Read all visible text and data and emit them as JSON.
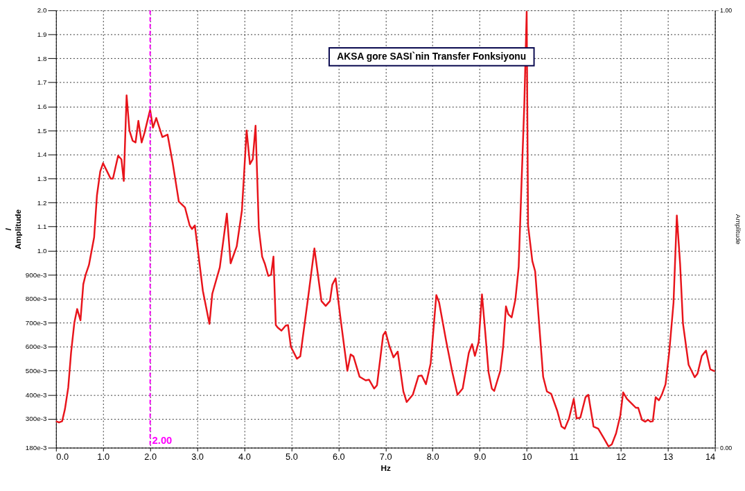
{
  "chart_data": {
    "type": "line",
    "title": "AKSA gore SASI`nin Transfer Fonksiyonu",
    "xlabel": "Hz",
    "ylabel": "/\nAmplitude",
    "y2label": "Amplitude",
    "x": [
      0,
      0.065,
      0.13,
      0.19,
      0.26,
      0.32,
      0.39,
      0.45,
      0.52,
      0.58,
      0.63,
      0.7,
      0.81,
      0.87,
      0.94,
      1.0,
      1.06,
      1.16,
      1.21,
      1.32,
      1.39,
      1.44,
      1.5,
      1.56,
      1.63,
      1.69,
      1.75,
      1.82,
      1.88,
      2.0,
      2.06,
      2.13,
      2.26,
      2.37,
      2.48,
      2.61,
      2.74,
      2.84,
      2.89,
      2.95,
      3.12,
      3.26,
      3.32,
      3.48,
      3.63,
      3.71,
      3.84,
      3.95,
      4.05,
      4.12,
      4.18,
      4.24,
      4.31,
      4.38,
      4.44,
      4.51,
      4.57,
      4.62,
      4.67,
      4.71,
      4.79,
      4.88,
      4.93,
      4.99,
      5.12,
      5.19,
      5.36,
      5.49,
      5.64,
      5.73,
      5.82,
      5.87,
      5.94,
      6.05,
      6.19,
      6.26,
      6.32,
      6.45,
      6.58,
      6.65,
      6.76,
      6.82,
      6.95,
      7.0,
      7.08,
      7.17,
      7.26,
      7.38,
      7.45,
      7.58,
      7.7,
      7.77,
      7.86,
      7.96,
      8.08,
      8.14,
      8.29,
      8.42,
      8.53,
      8.64,
      8.77,
      8.84,
      8.9,
      8.98,
      9.05,
      9.12,
      9.19,
      9.26,
      9.31,
      9.44,
      9.5,
      9.56,
      9.61,
      9.68,
      9.76,
      9.83,
      9.89,
      9.95,
      10.0,
      10.03,
      10.12,
      10.18,
      10.35,
      10.43,
      10.52,
      10.65,
      10.74,
      10.81,
      10.9,
      11.0,
      11.06,
      11.14,
      11.25,
      11.31,
      11.42,
      11.52,
      11.65,
      11.74,
      11.81,
      11.9,
      11.99,
      12.05,
      12.13,
      12.23,
      12.32,
      12.37,
      12.45,
      12.52,
      12.58,
      12.63,
      12.68,
      12.74,
      12.81,
      12.87,
      12.95,
      13.03,
      13.12,
      13.19,
      13.26,
      13.32,
      13.44,
      13.57,
      13.63,
      13.72,
      13.81,
      13.9,
      14.0
    ],
    "series": [
      {
        "color": "#e8141b",
        "values": [
          0.29,
          0.285,
          0.29,
          0.34,
          0.43,
          0.575,
          0.7,
          0.757,
          0.71,
          0.86,
          0.9,
          0.94,
          1.055,
          1.23,
          1.33,
          1.364,
          1.34,
          1.3,
          1.3,
          1.395,
          1.38,
          1.29,
          1.646,
          1.5,
          1.457,
          1.45,
          1.54,
          1.45,
          1.49,
          1.586,
          1.512,
          1.552,
          1.473,
          1.483,
          1.364,
          1.204,
          1.18,
          1.105,
          1.09,
          1.105,
          0.833,
          0.695,
          0.82,
          0.93,
          1.154,
          0.947,
          1.018,
          1.167,
          1.5,
          1.36,
          1.38,
          1.52,
          1.09,
          0.975,
          0.944,
          0.895,
          0.9,
          0.975,
          0.69,
          0.68,
          0.667,
          0.688,
          0.69,
          0.6,
          0.55,
          0.56,
          0.81,
          1.009,
          0.79,
          0.77,
          0.79,
          0.858,
          0.885,
          0.71,
          0.5,
          0.568,
          0.56,
          0.475,
          0.46,
          0.463,
          0.426,
          0.44,
          0.648,
          0.663,
          0.605,
          0.556,
          0.58,
          0.414,
          0.37,
          0.4,
          0.478,
          0.48,
          0.444,
          0.531,
          0.815,
          0.784,
          0.623,
          0.494,
          0.4,
          0.426,
          0.574,
          0.611,
          0.562,
          0.62,
          0.818,
          0.66,
          0.494,
          0.426,
          0.416,
          0.5,
          0.6,
          0.768,
          0.735,
          0.722,
          0.796,
          0.932,
          1.278,
          1.611,
          1.994,
          1.105,
          0.957,
          0.914,
          0.475,
          0.414,
          0.404,
          0.333,
          0.268,
          0.259,
          0.302,
          0.383,
          0.302,
          0.305,
          0.39,
          0.4,
          0.268,
          0.259,
          0.216,
          0.185,
          0.194,
          0.24,
          0.315,
          0.41,
          0.383,
          0.364,
          0.346,
          0.346,
          0.296,
          0.288,
          0.296,
          0.288,
          0.29,
          0.39,
          0.377,
          0.4,
          0.444,
          0.58,
          0.784,
          1.146,
          0.944,
          0.698,
          0.525,
          0.473,
          0.488,
          0.562,
          0.584,
          0.506,
          0.498
        ]
      }
    ],
    "xlim": [
      0,
      14
    ],
    "xticks": [
      {
        "value": 0,
        "label": "0.0"
      },
      {
        "value": 1,
        "label": "1.0"
      },
      {
        "value": 2,
        "label": "2.0"
      },
      {
        "value": 3,
        "label": "3.0"
      },
      {
        "value": 4,
        "label": "4.0"
      },
      {
        "value": 5,
        "label": "5.0"
      },
      {
        "value": 6,
        "label": "6.0"
      },
      {
        "value": 7,
        "label": "7.0"
      },
      {
        "value": 8,
        "label": "8.0"
      },
      {
        "value": 9,
        "label": "9.0"
      },
      10,
      11,
      12,
      13,
      14
    ],
    "ylim": [
      0.18,
      2.0
    ],
    "yticks": [
      {
        "value": 0.18,
        "label": "180e-3"
      },
      {
        "value": 0.3,
        "label": "300e-3"
      },
      {
        "value": 0.4,
        "label": "400e-3"
      },
      {
        "value": 0.5,
        "label": "500e-3"
      },
      {
        "value": 0.6,
        "label": "600e-3"
      },
      {
        "value": 0.7,
        "label": "700e-3"
      },
      {
        "value": 0.8,
        "label": "800e-3"
      },
      {
        "value": 0.9,
        "label": "900e-3"
      },
      {
        "value": 1.0,
        "label": "1.0"
      },
      1.1,
      1.2,
      1.3,
      1.4,
      1.5,
      1.6,
      1.7,
      1.8,
      1.9,
      {
        "value": 2.0,
        "label": "2.0"
      }
    ],
    "y2lim": [
      0,
      1
    ],
    "y2ticks": [
      {
        "value": 0,
        "label": "0.00"
      },
      {
        "value": 1,
        "label": "1.00"
      }
    ],
    "ref_lines": [
      {
        "axis": "x",
        "value": 2.0,
        "label": "2.00",
        "color": "#ff00ff",
        "line_style": "dashed"
      }
    ],
    "grid": true,
    "marker": "none",
    "line_style": "solid"
  }
}
